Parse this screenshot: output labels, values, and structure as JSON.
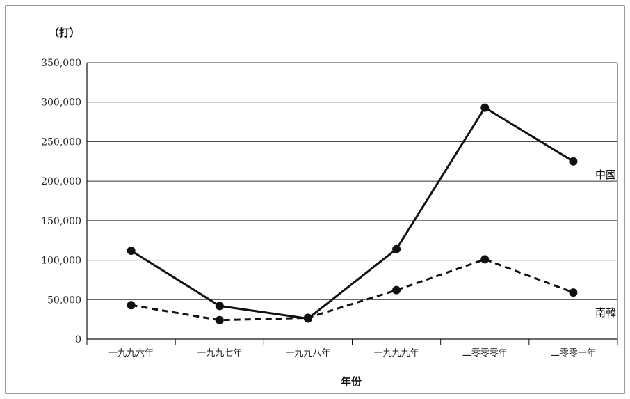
{
  "chart_data": {
    "type": "line",
    "unit_label": "（打）",
    "xlabel": "年份",
    "ylabel": "",
    "ylim": [
      0,
      350000
    ],
    "yticks": [
      0,
      50000,
      100000,
      150000,
      200000,
      250000,
      300000,
      350000
    ],
    "ytick_labels": [
      "0",
      "50,000",
      "100,000",
      "150,000",
      "200,000",
      "250,000",
      "300,000",
      "350,000"
    ],
    "categories": [
      "一九九六年",
      "一九九七年",
      "一九九八年",
      "一九九九年",
      "二零零零年",
      "二零零一年"
    ],
    "grid": true,
    "series": [
      {
        "name": "中國",
        "style": "solid",
        "color": "#111111",
        "values": [
          112000,
          42000,
          26000,
          114000,
          293000,
          225000
        ]
      },
      {
        "name": "南韓",
        "style": "dashed",
        "color": "#111111",
        "values": [
          43000,
          24000,
          27000,
          62000,
          101000,
          59000
        ]
      }
    ]
  }
}
